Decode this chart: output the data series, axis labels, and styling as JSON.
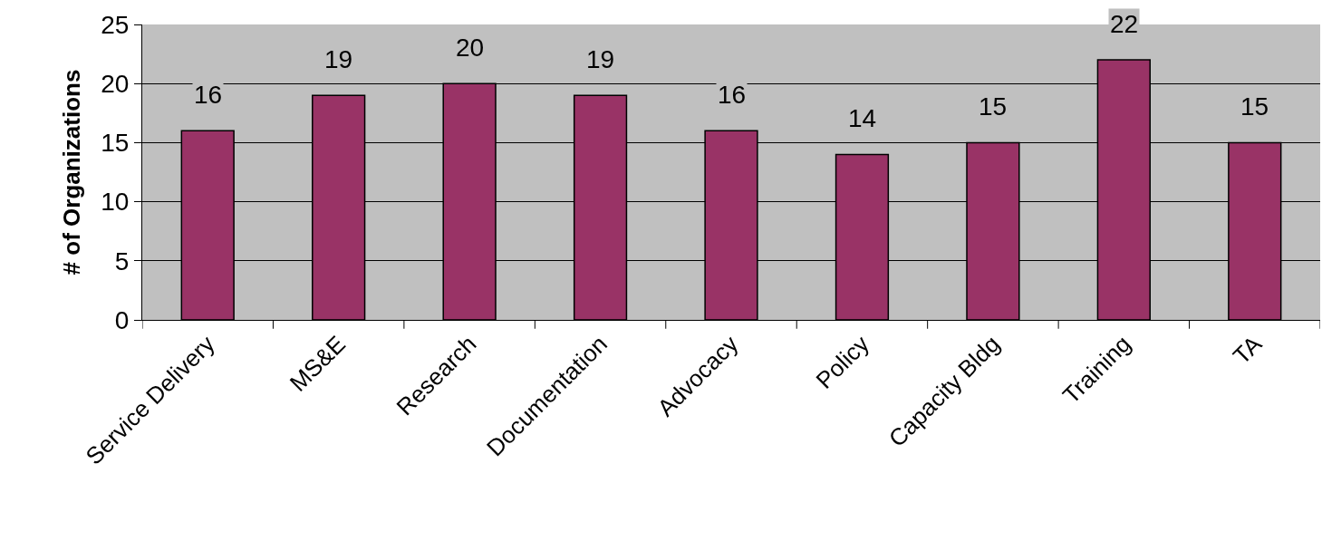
{
  "chart_data": {
    "type": "bar",
    "ylabel": "# of Organizations",
    "categories": [
      "Service Delivery",
      "MS&E",
      "Research",
      "Documentation",
      "Advocacy",
      "Policy",
      "Capacity Bldg",
      "Training",
      "TA"
    ],
    "values": [
      16,
      19,
      20,
      19,
      16,
      14,
      15,
      22,
      15
    ],
    "color": "#993366",
    "ylim": [
      0,
      25
    ],
    "yticks": [
      0,
      5,
      10,
      15,
      20,
      25
    ],
    "grid": "y",
    "data_labels": true,
    "legend": false
  }
}
